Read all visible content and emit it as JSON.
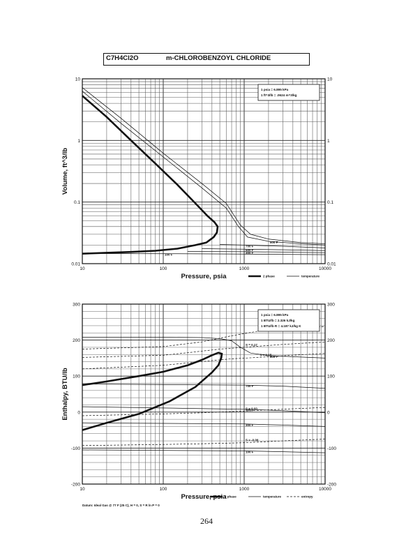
{
  "title": {
    "formula": "C7H4Cl2O",
    "name": "m-CHLOROBENZOYL CHLORIDE"
  },
  "page_number": "264",
  "chart_data": [
    {
      "type": "line",
      "ylabel": "Volume, ft^3/lb",
      "xlabel": "Pressure,  psia",
      "xscale": "log",
      "yscale": "log",
      "xlim": [
        10,
        10000
      ],
      "ylim": [
        0.01,
        10
      ],
      "x_ticks": [
        "10",
        "100",
        "1000",
        "10000"
      ],
      "y_ticks": [
        "10",
        "1",
        "0.1",
        "0.01"
      ],
      "y_ticks_right": [
        "10",
        "1",
        "0.1",
        "0.01"
      ],
      "grid": true,
      "legend_position": "bottom-right",
      "legend": [
        "2 phase",
        "temperature"
      ],
      "notes": [
        "1 psia  =  6.895 kPa",
        "1 ft^3/lb  =  .0624 m^3/kg"
      ],
      "series": [
        {
          "name": "2 phase",
          "style": "bold",
          "x": [
            10,
            20,
            40,
            80,
            150,
            250,
            350,
            430,
            470,
            460,
            420,
            340,
            250,
            150,
            80,
            40,
            20,
            10
          ],
          "y": [
            5.3,
            2.4,
            1.0,
            0.42,
            0.19,
            0.095,
            0.06,
            0.047,
            0.04,
            0.032,
            0.027,
            0.022,
            0.02,
            0.0175,
            0.0162,
            0.0155,
            0.015,
            0.0145
          ]
        },
        {
          "label": "500 F",
          "style": "thin",
          "x": [
            10,
            30,
            100,
            300,
            600,
            850,
            1100,
            2000,
            5000,
            10000
          ],
          "y": [
            6.3,
            1.9,
            0.54,
            0.17,
            0.08,
            0.04,
            0.027,
            0.023,
            0.021,
            0.02
          ]
        },
        {
          "style": "thin",
          "x": [
            10,
            30,
            100,
            300,
            600,
            900,
            1200,
            2000,
            5000,
            10000
          ],
          "y": [
            7.2,
            2.3,
            0.62,
            0.2,
            0.095,
            0.042,
            0.03,
            0.025,
            0.022,
            0.021
          ]
        },
        {
          "label": "700 F",
          "style": "thin",
          "x": [
            500,
            1000,
            3000,
            10000
          ],
          "y": [
            0.0205,
            0.02,
            0.0192,
            0.018
          ]
        },
        {
          "label": "500 F",
          "style": "thin",
          "x": [
            300,
            1000,
            3000,
            10000
          ],
          "y": [
            0.0175,
            0.0172,
            0.0168,
            0.0163
          ]
        },
        {
          "label": "300 F",
          "style": "thin",
          "x": [
            200,
            1000,
            3000,
            10000
          ],
          "y": [
            0.0158,
            0.0156,
            0.0154,
            0.0151
          ]
        },
        {
          "label": "100 F",
          "style": "thin",
          "x": [
            10,
            100,
            1000,
            10000
          ],
          "y": [
            0.0146,
            0.0145,
            0.0143,
            0.014
          ]
        }
      ]
    },
    {
      "type": "line",
      "ylabel": "Enthalpy, BTU/lb",
      "xlabel": "Pressure,  psia",
      "xscale": "log",
      "xlim": [
        10,
        10000
      ],
      "ylim": [
        -200,
        300
      ],
      "x_ticks": [
        "10",
        "100",
        "1000",
        "10000"
      ],
      "y_ticks": [
        "300",
        "200",
        "100",
        "0",
        "-100",
        "-200"
      ],
      "y_ticks_right": [
        "300",
        "200",
        "100",
        "0",
        "-100",
        "-200"
      ],
      "grid": true,
      "legend_position": "bottom-right",
      "legend": [
        "2 phase",
        "temperature",
        "entropy"
      ],
      "notes": [
        "1 psia  =  6.895 kPa",
        "1 BTU/lb  =  2.326 kJ/kg",
        "1 BTU/lb R  =  4.187 kJ/kg K"
      ],
      "footnote": "Datum: Ideal Gas @ 77 F (25 C), H = 0, S = R ln P = 0",
      "series": [
        {
          "name": "2 phase",
          "style": "bold",
          "x": [
            10,
            20,
            50,
            100,
            200,
            300,
            400,
            480,
            530,
            520,
            480,
            400,
            250,
            120,
            50,
            20,
            10
          ],
          "y": [
            75,
            85,
            100,
            112,
            130,
            145,
            158,
            165,
            162,
            150,
            130,
            110,
            70,
            30,
            -5,
            -30,
            -50
          ]
        },
        {
          "label": "900 F",
          "style": "thin",
          "x": [
            10,
            100,
            300,
            500,
            700,
            900,
            1200,
            2000,
            5000,
            10000
          ],
          "y": [
            208,
            208,
            207,
            204,
            198,
            180,
            164,
            157,
            153,
            150
          ]
        },
        {
          "label": "700 F",
          "style": "thin",
          "x": [
            10,
            1000,
            3000,
            10000
          ],
          "y": [
            78,
            75,
            72,
            66
          ]
        },
        {
          "label": "500 F",
          "style": "thin",
          "x": [
            10,
            1000,
            3000,
            10000
          ],
          "y": [
            15,
            8,
            4,
            -2
          ]
        },
        {
          "label": "300 F",
          "style": "thin",
          "x": [
            10,
            1000,
            3000,
            10000
          ],
          "y": [
            -30,
            -33,
            -36,
            -40
          ]
        },
        {
          "label": "100 F",
          "style": "thin",
          "x": [
            10,
            1000,
            3000,
            10000
          ],
          "y": [
            -105,
            -108,
            -110,
            -113
          ]
        },
        {
          "label": "S = 0.2",
          "style": "dashed",
          "x": [
            10,
            100,
            300,
            700,
            1500,
            4000,
            10000
          ],
          "y": [
            175,
            182,
            195,
            212,
            225,
            232,
            238
          ]
        },
        {
          "label": "S = 0.17",
          "style": "dashed",
          "x": [
            10,
            100,
            200,
            500,
            1000,
            3000,
            10000
          ],
          "y": [
            152,
            158,
            165,
            175,
            180,
            188,
            195
          ]
        },
        {
          "label": "S = 0.15",
          "style": "dashed",
          "x": [
            10,
            100,
            400,
            700,
            1500,
            4000,
            10000
          ],
          "y": [
            120,
            130,
            143,
            148,
            152,
            158,
            163
          ]
        },
        {
          "label": "S = 0.00",
          "style": "dashed",
          "x": [
            10,
            100,
            300,
            1000,
            3000,
            10000
          ],
          "y": [
            -10,
            -5,
            -2,
            3,
            8,
            13
          ]
        },
        {
          "label": "S = -0.09",
          "style": "dashed",
          "x": [
            10,
            100,
            300,
            1000,
            3000,
            10000
          ],
          "y": [
            -93,
            -90,
            -88,
            -85,
            -80,
            -75
          ]
        }
      ]
    }
  ]
}
